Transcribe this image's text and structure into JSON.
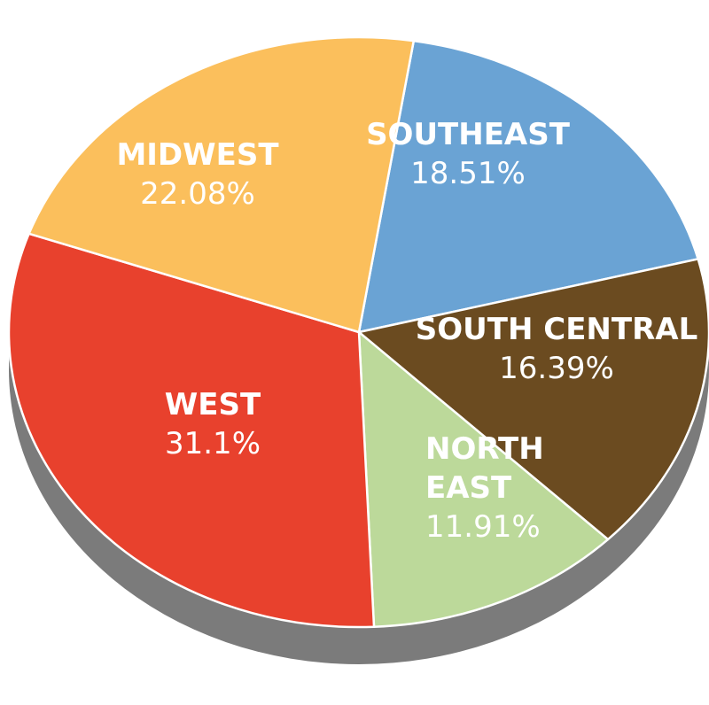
{
  "chart_data": {
    "type": "pie",
    "slices": [
      {
        "name_lines": [
          "SOUTHEAST"
        ],
        "value": 18.51,
        "value_label": "18.51%",
        "color": "#6aa3d4"
      },
      {
        "name_lines": [
          "SOUTH CENTRAL"
        ],
        "value": 16.39,
        "value_label": "16.39%",
        "color": "#6b4b20"
      },
      {
        "name_lines": [
          "NORTH",
          "EAST"
        ],
        "value": 11.91,
        "value_label": "11.91%",
        "color": "#bcd99a"
      },
      {
        "name_lines": [
          "WEST"
        ],
        "value": 31.1,
        "value_label": "31.1%",
        "color": "#e8412d"
      },
      {
        "name_lines": [
          "MIDWEST"
        ],
        "value": 22.08,
        "value_label": "22.08%",
        "color": "#fbbf5c"
      }
    ],
    "style": "3d-tilted",
    "side_color": "#7b7b7b"
  }
}
